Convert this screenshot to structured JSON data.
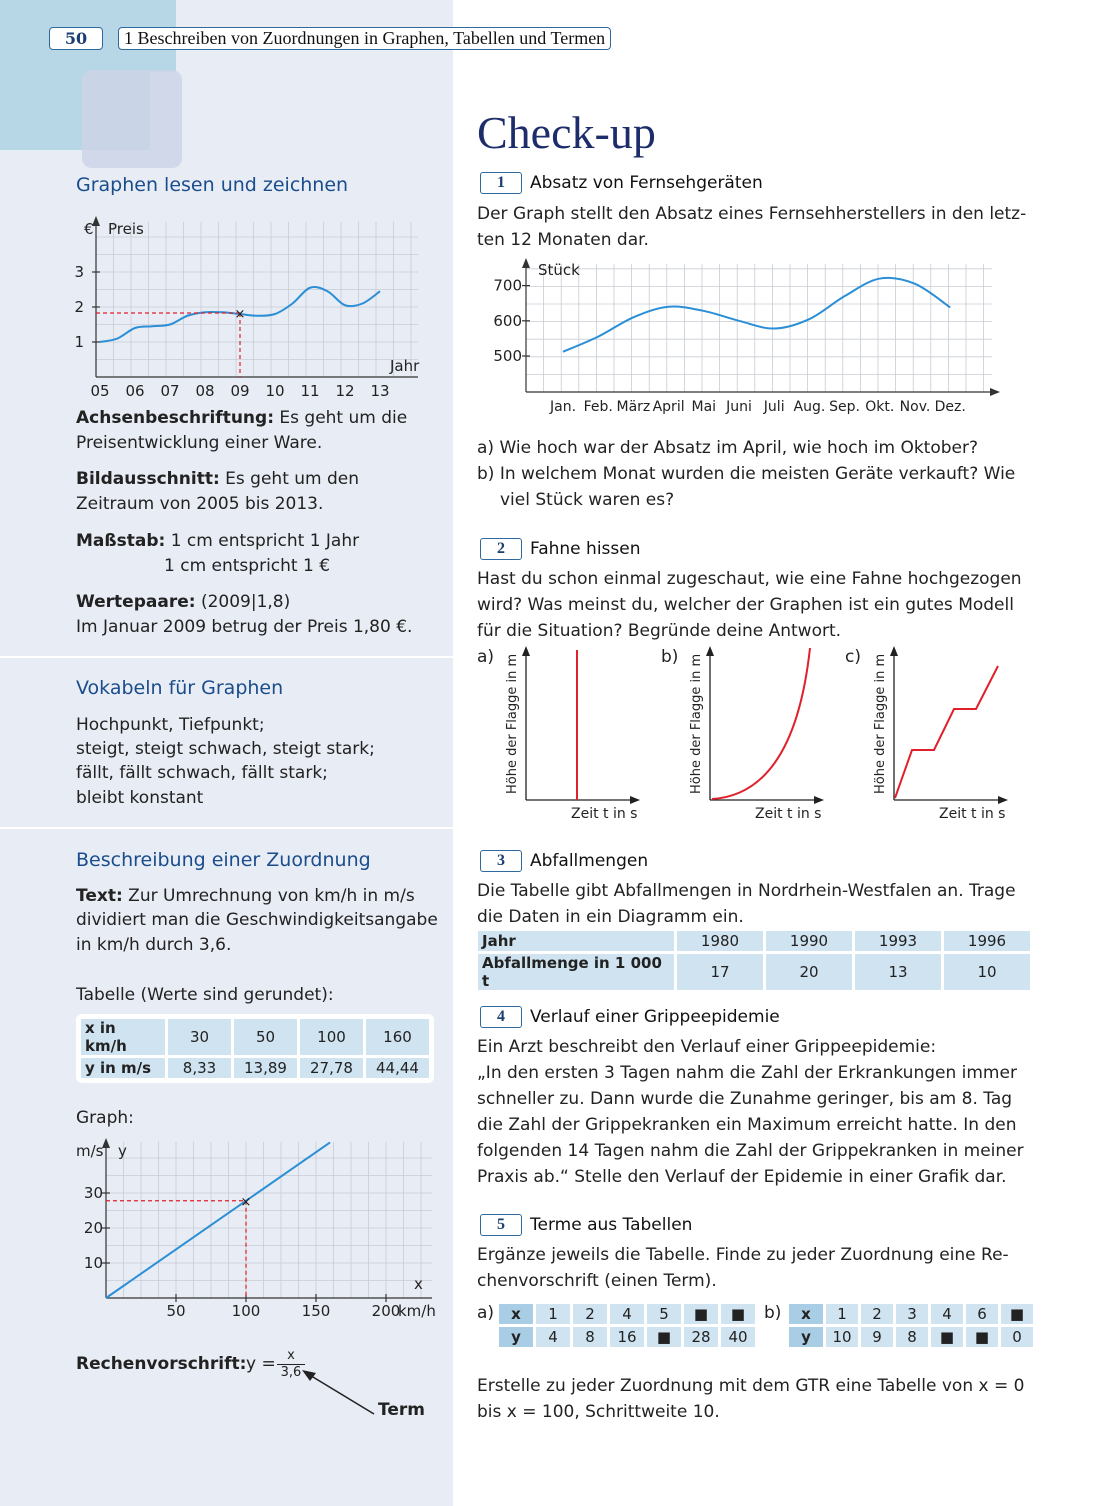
{
  "header": {
    "page_number": "50",
    "chapter": "1 Beschreiben von Zuordnungen in Graphen, Tabellen und Termen"
  },
  "title": "Check-up",
  "left": {
    "graphen": {
      "heading": "Graphen lesen und zeichnen",
      "chart_data": {
        "type": "line",
        "ylabel": "Preis",
        "yunit": "€",
        "xlabel": "Jahr",
        "xticks": [
          "05",
          "06",
          "07",
          "08",
          "09",
          "10",
          "11",
          "12",
          "13"
        ],
        "yticks": [
          "1",
          "2",
          "3"
        ],
        "x": [
          2005,
          2005.5,
          2006,
          2006.5,
          2007,
          2007.5,
          2008,
          2008.5,
          2009,
          2009.5,
          2010,
          2010.5,
          2011,
          2011.5,
          2012,
          2012.5,
          2013
        ],
        "y": [
          1.0,
          1.1,
          1.4,
          1.45,
          1.5,
          1.75,
          1.85,
          1.85,
          1.8,
          1.75,
          1.8,
          2.1,
          2.55,
          2.45,
          2.05,
          2.1,
          2.45
        ],
        "marked_point": {
          "x": 2009,
          "y": 1.8
        }
      },
      "achsen_label": "Achsenbeschriftung:",
      "achsen_text": " Es geht um die Preisentwicklung einer Ware.",
      "bild_label": "Bildausschnitt:",
      "bild_text": " Es geht um den Zeitraum von 2005 bis 2013.",
      "massstab_label": "Maßstab:",
      "massstab_1": " 1 cm entspricht 1 Jahr",
      "massstab_2": "1 cm entspricht 1 €",
      "werte_label": "Wertepaare:",
      "werte_text": " (2009|1,8)",
      "werte_text2": "Im Januar 2009 betrug der Preis 1,80 €."
    },
    "vokabeln": {
      "heading": "Vokabeln für Graphen",
      "lines": [
        "Hochpunkt, Tiefpunkt;",
        "steigt, steigt schwach, steigt stark;",
        "fällt, fällt schwach, fällt stark;",
        "bleibt konstant"
      ]
    },
    "zuordnung": {
      "heading": "Beschreibung einer Zuordnung",
      "text_label": "Text:",
      "text_line1": " Zur Umrechnung von km/h in m/s",
      "text_line2": "dividiert man die Geschwindigkeitsangabe",
      "text_line3": "in km/h durch 3,6.",
      "tabelle_heading": "Tabelle (Werte sind gerundet):",
      "table": {
        "row1_label": "x in km/h",
        "row2_label": "y in m/s",
        "x": [
          "30",
          "50",
          "100",
          "160"
        ],
        "y": [
          "8,33",
          "13,89",
          "27,78",
          "44,44"
        ]
      },
      "graph_heading": "Graph:",
      "chart_data": {
        "type": "line",
        "ylabel": "y",
        "yunit": "m/s",
        "xlabel": "x",
        "xunit": "km/h",
        "xticks": [
          "50",
          "100",
          "150",
          "200"
        ],
        "yticks": [
          "10",
          "20",
          "30"
        ],
        "x": [
          0,
          160
        ],
        "y": [
          0,
          44.44
        ],
        "marked_point": {
          "x": 100,
          "y": 27.78
        }
      },
      "rechen_label": "Rechenvorschrift:",
      "formula_lhs": "y =",
      "formula_num": "x",
      "formula_den": "3,6",
      "term_label": "Term"
    }
  },
  "tasks": {
    "t1": {
      "number": "1",
      "title": "Absatz von Fernsehgeräten",
      "text": [
        "Der Graph stellt den Absatz eines Fernsehherstellers in den letz-",
        "ten 12 Monaten dar."
      ],
      "chart_data": {
        "type": "line",
        "ylabel": "Stück",
        "categories": [
          "Jan.",
          "Feb.",
          "März",
          "April",
          "Mai",
          "Juni",
          "Juli",
          "Aug.",
          "Sep.",
          "Okt.",
          "Nov.",
          "Dez."
        ],
        "values": [
          512,
          555,
          610,
          640,
          628,
          600,
          578,
          605,
          670,
          720,
          705,
          638
        ],
        "yticks": [
          "500",
          "600",
          "700"
        ]
      },
      "q_a": "a) Wie hoch war der Absatz im April, wie hoch im Oktober?",
      "q_b1": "b) In welchem Monat wurden die meisten Geräte verkauft? Wie",
      "q_b2": "viel Stück waren es?"
    },
    "t2": {
      "number": "2",
      "title": "Fahne hissen",
      "text": [
        "Hast du schon einmal zugeschaut, wie eine Fahne hochgezogen",
        "wird? Was meinst du, welcher der Graphen ist ein gutes Modell",
        "für die Situation? Begründe deine Antwort."
      ],
      "graph_labels": [
        "a)",
        "b)",
        "c)"
      ],
      "ylabel": "Höhe der Flagge in m",
      "xlabel": "Zeit t in s"
    },
    "t3": {
      "number": "3",
      "title": "Abfallmengen",
      "text": [
        "Die Tabelle gibt Abfallmengen in Nordrhein-Westfalen an. Trage",
        "die Daten in ein Diagramm ein."
      ],
      "row1_label": "Jahr",
      "row2_label": "Abfallmenge in 1 000 t",
      "years": [
        "1980",
        "1990",
        "1993",
        "1996"
      ],
      "amounts": [
        "17",
        "20",
        "13",
        "10"
      ]
    },
    "t4": {
      "number": "4",
      "title": "Verlauf einer Grippeepidemie",
      "text": [
        "Ein Arzt beschreibt den Verlauf einer Grippeepidemie:",
        "„In den ersten 3 Tagen nahm die Zahl der Erkrankungen immer",
        "schneller zu. Dann wurde die Zunahme geringer, bis am 8. Tag",
        "die Zahl der Grippekranken ein Maximum erreicht hatte. In den",
        "folgenden 14 Tagen nahm die Zahl der Grippekranken in meiner",
        "Praxis ab.“ Stelle den Verlauf der Epidemie in einer Grafik dar."
      ]
    },
    "t5": {
      "number": "5",
      "title": "Terme aus Tabellen",
      "text": [
        "Ergänze jeweils die Tabelle. Finde zu jeder Zuordnung eine Re-",
        "chenvorschrift (einen Term)."
      ],
      "a_label": "a)",
      "b_label": "b)",
      "x_label": "x",
      "y_label": "y",
      "a_x": [
        "1",
        "2",
        "4",
        "5",
        "■",
        "■"
      ],
      "a_y": [
        "4",
        "8",
        "16",
        "■",
        "28",
        "40"
      ],
      "b_x": [
        "1",
        "2",
        "3",
        "4",
        "6",
        "■"
      ],
      "b_y": [
        "10",
        "9",
        "8",
        "■",
        "■",
        "0"
      ],
      "footer": [
        "Erstelle zu jeder Zuordnung mit dem GTR eine Tabelle von x = 0",
        "bis x = 100, Schrittweite 10."
      ]
    }
  }
}
